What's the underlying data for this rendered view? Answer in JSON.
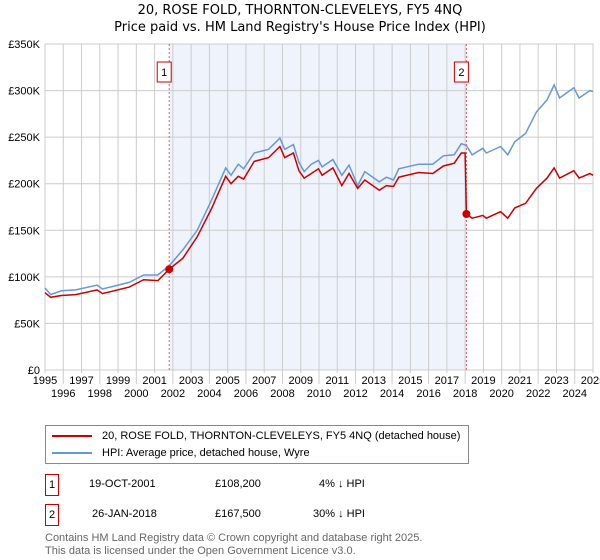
{
  "title": "20, ROSE FOLD, THORNTON-CLEVELEYS, FY5 4NQ",
  "subtitle": "Price paid vs. HM Land Registry's House Price Index (HPI)",
  "chart_data": {
    "type": "line",
    "title": "20, ROSE FOLD, THORNTON-CLEVELEYS, FY5 4NQ",
    "subtitle": "Price paid vs. HM Land Registry's House Price Index (HPI)",
    "xlim": [
      1995,
      2025
    ],
    "ylim": [
      0,
      350000
    ],
    "grid": true,
    "x_ticks": [
      "1995",
      "1996",
      "1997",
      "1998",
      "1999",
      "2000",
      "2001",
      "2002",
      "2003",
      "2004",
      "2005",
      "2006",
      "2007",
      "2008",
      "2009",
      "2010",
      "2011",
      "2012",
      "2013",
      "2014",
      "2015",
      "2016",
      "2017",
      "2018",
      "2019",
      "2020",
      "2021",
      "2022",
      "2023",
      "2024",
      "2025"
    ],
    "y_ticks": [
      {
        "v": 0,
        "label": "£0"
      },
      {
        "v": 50000,
        "label": "£50K"
      },
      {
        "v": 100000,
        "label": "£100K"
      },
      {
        "v": 150000,
        "label": "£150K"
      },
      {
        "v": 200000,
        "label": "£200K"
      },
      {
        "v": 250000,
        "label": "£250K"
      },
      {
        "v": 300000,
        "label": "£300K"
      },
      {
        "v": 350000,
        "label": "£350K"
      }
    ],
    "shaded_range": [
      2001.8,
      2018.07
    ],
    "series": [
      {
        "name": "20, ROSE FOLD, THORNTON-CLEVELEYS, FY5 4NQ (detached house)",
        "color": "#cc0000",
        "x": [
          1995.0,
          1995.31,
          1995.9,
          1996.68,
          1997.85,
          1998.15,
          1999.61,
          2000.4,
          2001.18,
          2001.8,
          2002.55,
          2003.33,
          2004.11,
          2004.89,
          2005.18,
          2005.58,
          2005.87,
          2006.45,
          2007.24,
          2007.86,
          2008.12,
          2008.6,
          2008.9,
          2009.19,
          2009.58,
          2009.97,
          2010.17,
          2010.76,
          2011.25,
          2011.64,
          2012.12,
          2012.51,
          2013.3,
          2013.69,
          2014.08,
          2014.37,
          2015.45,
          2016.23,
          2016.81,
          2017.4,
          2017.79,
          2018.0,
          2018.07,
          2018.38,
          2018.97,
          2019.16,
          2019.94,
          2020.33,
          2020.72,
          2021.31,
          2021.9,
          2022.48,
          2022.87,
          2023.17,
          2023.95,
          2024.24,
          2024.83,
          2025.0
        ],
        "y": [
          83000,
          78000,
          80000,
          81000,
          86000,
          82000,
          89000,
          97000,
          96000,
          108200,
          120000,
          143000,
          173000,
          208000,
          200000,
          208000,
          205000,
          224000,
          228000,
          240000,
          228000,
          233000,
          214000,
          206000,
          211000,
          216000,
          209000,
          217000,
          198000,
          211000,
          195000,
          204000,
          193000,
          198000,
          197000,
          207000,
          212000,
          211000,
          219000,
          222000,
          233000,
          233000,
          167500,
          163000,
          166000,
          163000,
          170000,
          163000,
          174000,
          179000,
          195000,
          206000,
          217000,
          206000,
          214000,
          206000,
          211000,
          209000
        ]
      },
      {
        "name": "HPI: Average price, detached house, Wyre",
        "color": "#6699d6",
        "x": [
          1995.0,
          1995.31,
          1995.9,
          1996.68,
          1997.85,
          1998.15,
          1999.61,
          2000.4,
          2001.18,
          2001.8,
          2002.55,
          2003.33,
          2004.11,
          2004.89,
          2005.18,
          2005.58,
          2005.87,
          2006.45,
          2007.24,
          2007.86,
          2008.12,
          2008.6,
          2008.9,
          2009.19,
          2009.58,
          2009.97,
          2010.17,
          2010.76,
          2011.25,
          2011.64,
          2012.12,
          2012.51,
          2013.3,
          2013.69,
          2014.08,
          2014.37,
          2015.45,
          2016.23,
          2016.81,
          2017.4,
          2017.79,
          2018.07,
          2018.38,
          2018.97,
          2019.16,
          2019.94,
          2020.33,
          2020.72,
          2021.31,
          2021.9,
          2022.48,
          2022.87,
          2023.17,
          2023.95,
          2024.24,
          2024.83,
          2025.0
        ],
        "y": [
          88000,
          81000,
          85000,
          86000,
          91000,
          87000,
          94000,
          102000,
          102000,
          112000,
          129000,
          150000,
          182000,
          217000,
          209000,
          221000,
          216000,
          233000,
          237000,
          249000,
          237000,
          242000,
          223000,
          213000,
          221000,
          225000,
          218000,
          226000,
          209000,
          220000,
          198000,
          213000,
          202000,
          207000,
          204000,
          216000,
          221000,
          221000,
          230000,
          231000,
          243000,
          241000,
          231000,
          238000,
          233000,
          240000,
          231000,
          245000,
          254000,
          277000,
          290000,
          306000,
          292000,
          303000,
          292000,
          300000,
          299000
        ]
      }
    ],
    "annotations": [
      {
        "label": "1",
        "x": 2001.8,
        "y": 108200
      },
      {
        "label": "2",
        "x": 2018.07,
        "y": 167500
      }
    ]
  },
  "legend": {
    "property_label": "20, ROSE FOLD, THORNTON-CLEVELEYS, FY5 4NQ (detached house)",
    "hpi_label": "HPI: Average price, detached house, Wyre"
  },
  "transactions": [
    {
      "num": "1",
      "date": "19-OCT-2001",
      "price": "£108,200",
      "hpi": "4% ↓ HPI"
    },
    {
      "num": "2",
      "date": "26-JAN-2018",
      "price": "£167,500",
      "hpi": "30% ↓ HPI"
    }
  ],
  "footer": {
    "line1": "Contains HM Land Registry data © Crown copyright and database right 2025.",
    "line2": "This data is licensed under the Open Government Licence v3.0."
  }
}
